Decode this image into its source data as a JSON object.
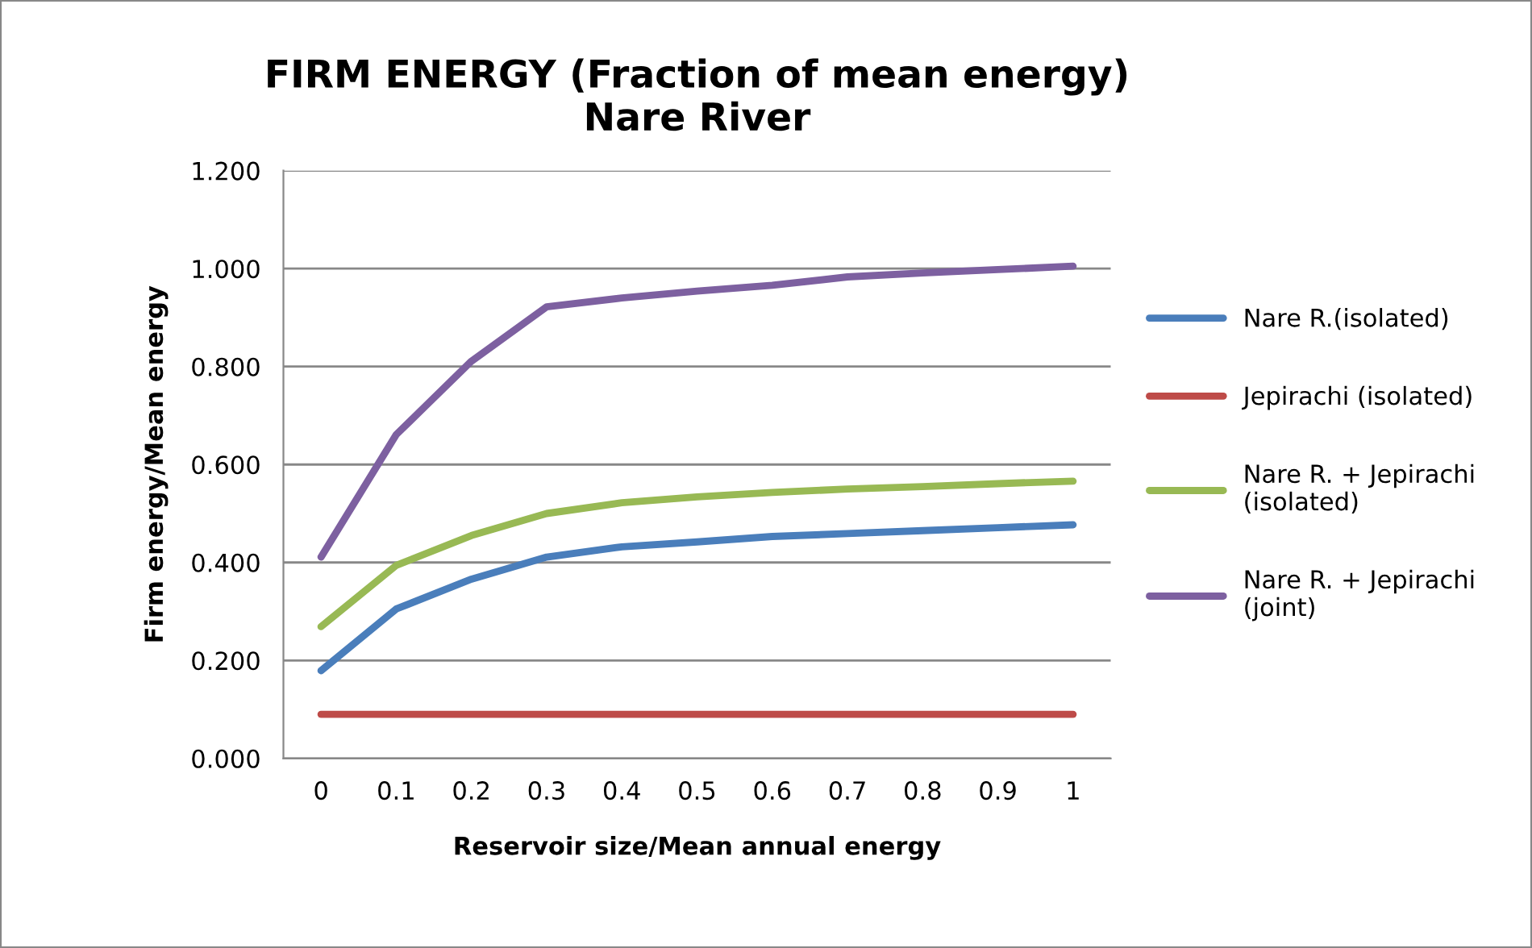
{
  "chart_data": {
    "type": "line",
    "title": "FIRM ENERGY (Fraction of mean energy)\nNare River",
    "xlabel": "Reservoir size/Mean annual energy",
    "ylabel": "Firm energy/Mean energy",
    "categories": [
      "0",
      "0.1",
      "0.2",
      "0.3",
      "0.4",
      "0.5",
      "0.6",
      "0.7",
      "0.8",
      "0.9",
      "1"
    ],
    "series": [
      {
        "name": "Nare R.(isolated)",
        "color": "#4a7ebb",
        "values": [
          0.179,
          0.305,
          0.366,
          0.411,
          0.432,
          0.442,
          0.453,
          0.459,
          0.465,
          0.471,
          0.477
        ]
      },
      {
        "name": "Jepirachi (isolated)",
        "color": "#be4b48",
        "values": [
          0.09,
          0.09,
          0.09,
          0.09,
          0.09,
          0.09,
          0.09,
          0.09,
          0.09,
          0.09,
          0.09
        ]
      },
      {
        "name": "Nare R. + Jepirachi (isolated)",
        "color": "#98b954",
        "values": [
          0.269,
          0.394,
          0.455,
          0.5,
          0.522,
          0.534,
          0.543,
          0.55,
          0.555,
          0.561,
          0.566
        ]
      },
      {
        "name": "Nare R. + Jepirachi (joint)",
        "color": "#7d60a0",
        "values": [
          0.411,
          0.661,
          0.811,
          0.922,
          0.94,
          0.954,
          0.966,
          0.983,
          0.991,
          0.998,
          1.005
        ]
      }
    ],
    "ylim": [
      0,
      1.2
    ],
    "yticks": [
      {
        "value": 0,
        "label": "0.000"
      },
      {
        "value": 0.2,
        "label": "0.200"
      },
      {
        "value": 0.4,
        "label": "0.400"
      },
      {
        "value": 0.6,
        "label": "0.600"
      },
      {
        "value": 0.8,
        "label": "0.800"
      },
      {
        "value": 1.0,
        "label": "1.000"
      },
      {
        "value": 1.2,
        "label": "1.200"
      }
    ],
    "grid": "y",
    "legend": "right",
    "marker": "none",
    "line_style": "solid"
  }
}
